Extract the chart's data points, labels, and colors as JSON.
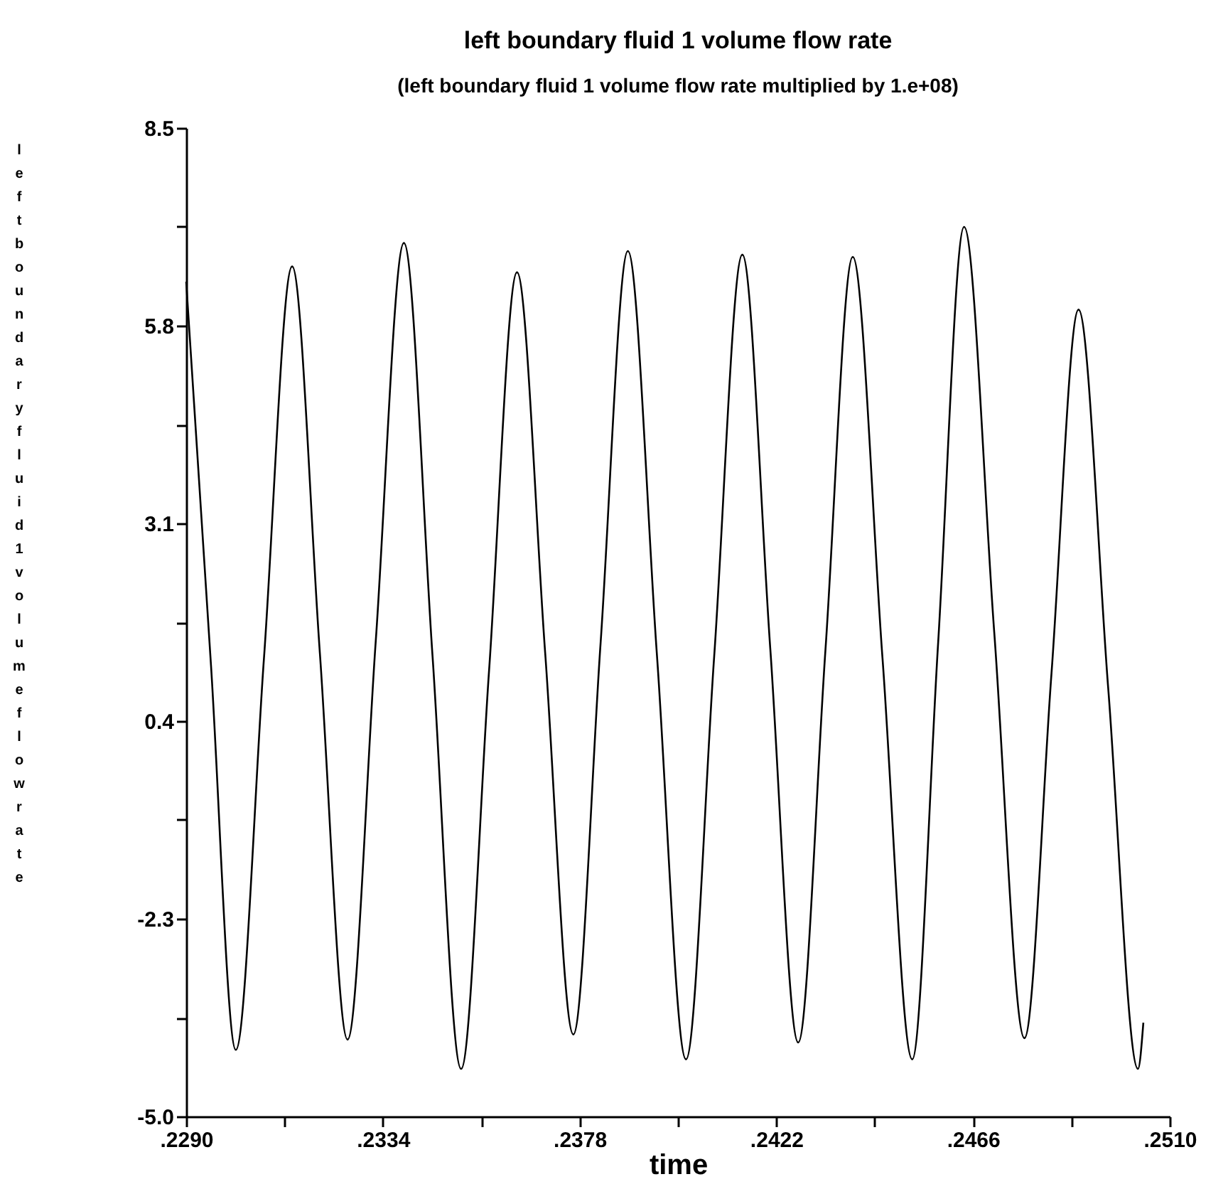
{
  "chart_data": {
    "type": "line",
    "title": "left boundary fluid 1 volume flow rate",
    "subtitle": "(left boundary fluid 1 volume flow rate multiplied by  1.e+08)",
    "xlabel": "time",
    "ylabel": "left boundary fluid 1 volume flow rate",
    "color": "#000000",
    "x": [
      0.229,
      0.229555,
      0.23011,
      0.23074,
      0.23137,
      0.23199,
      0.23261,
      0.23324,
      0.23387,
      0.23451,
      0.23515,
      0.235775,
      0.2364,
      0.23703,
      0.23766,
      0.23827,
      0.23888,
      0.23953,
      0.24018,
      0.24081,
      0.24144,
      0.242065,
      0.24269,
      0.2433,
      0.24391,
      0.244575,
      0.24524,
      0.24582,
      0.2464,
      0.247075,
      0.24775,
      0.248355,
      0.24896,
      0.249625,
      0.25029,
      0.25041
    ],
    "values": [
      6.4,
      1.16,
      -4.09,
      1.26,
      6.61,
      1.33,
      -3.95,
      1.49,
      6.93,
      1.29,
      -4.35,
      1.09,
      6.53,
      1.33,
      -3.88,
      1.47,
      6.82,
      1.3,
      -4.22,
      1.28,
      6.77,
      1.39,
      -3.99,
      1.38,
      6.74,
      1.26,
      -4.22,
      1.47,
      7.15,
      1.61,
      -3.93,
      1.05,
      6.02,
      0.84,
      -4.35,
      -3.72
    ],
    "xlim": [
      0.229,
      0.251
    ],
    "xticks": [
      {
        "value": 0.229,
        "label": ".2290"
      },
      {
        "value": 0.2312,
        "label": null
      },
      {
        "value": 0.2334,
        "label": ".2334"
      },
      {
        "value": 0.2356,
        "label": null
      },
      {
        "value": 0.2378,
        "label": ".2378"
      },
      {
        "value": 0.24,
        "label": null
      },
      {
        "value": 0.2422,
        "label": ".2422"
      },
      {
        "value": 0.2444,
        "label": null
      },
      {
        "value": 0.2466,
        "label": ".2466"
      },
      {
        "value": 0.2488,
        "label": null
      },
      {
        "value": 0.251,
        "label": ".2510"
      }
    ],
    "ylim": [
      -5.0,
      8.5
    ],
    "yticks": [
      {
        "value": -5.0,
        "label": "-5.0"
      },
      {
        "value": -3.65,
        "label": null
      },
      -2.3,
      {
        "value": -0.95,
        "label": null
      },
      0.4,
      {
        "value": 1.75,
        "label": null
      },
      3.1,
      {
        "value": 4.45,
        "label": null
      },
      5.8,
      {
        "value": 7.15,
        "label": null
      },
      8.5
    ]
  }
}
